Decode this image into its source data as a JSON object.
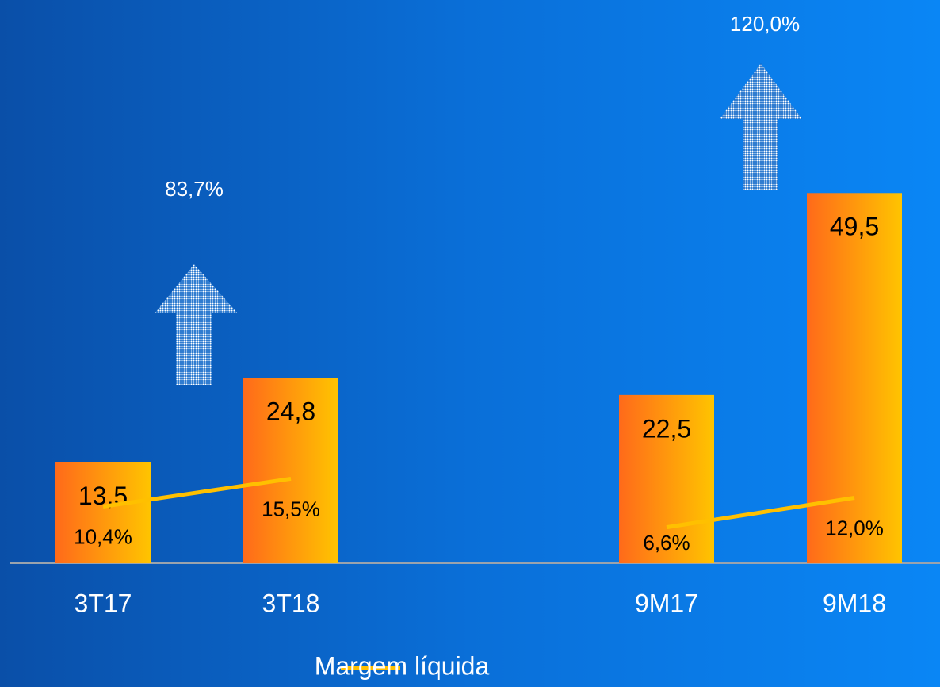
{
  "chart_data": {
    "type": "bar",
    "categories": [
      "3T17",
      "3T18",
      null,
      "9M17",
      "9M18"
    ],
    "series": [
      {
        "type": "bar",
        "color": "#ff6a1a",
        "values": [
          13.5,
          24.8,
          null,
          22.5,
          49.5
        ],
        "value_labels": [
          "13,5",
          "24,8",
          null,
          "22,5",
          "49,5"
        ]
      },
      {
        "type": "line",
        "name": "Margem líquida",
        "color": "#ffc000",
        "axis": "y2",
        "values": [
          10.4,
          15.5,
          null,
          6.6,
          12.0
        ],
        "value_labels": [
          "10,4%",
          "15,5%",
          null,
          "6,6%",
          "12,0%"
        ]
      }
    ],
    "annotations": [
      "83,7%",
      "120,0%"
    ],
    "ylim": [
      0,
      70
    ],
    "y2lim": [
      0,
      96
    ],
    "legend": "bottom"
  }
}
